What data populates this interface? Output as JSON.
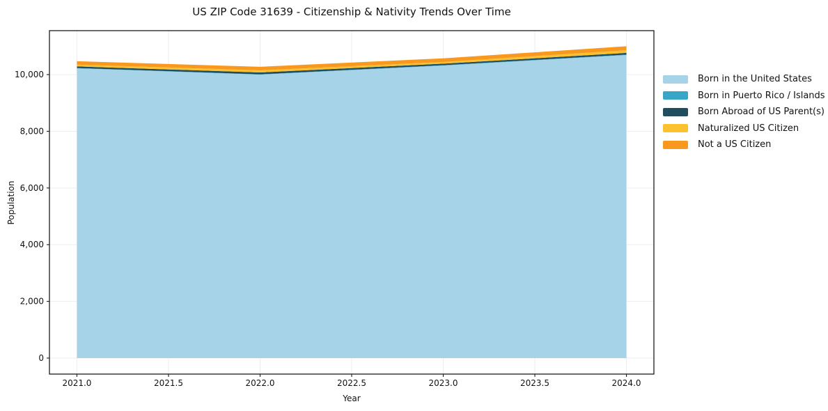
{
  "chart": {
    "title": "US ZIP Code 31639 - Citizenship & Nativity Trends Over Time",
    "xlabel": "Year",
    "ylabel": "Population"
  },
  "chart_data": {
    "type": "area",
    "stacked": true,
    "x": [
      2021,
      2022,
      2023,
      2024
    ],
    "series": [
      {
        "name": "Born in the United States",
        "color": "#A6D3E8",
        "values": [
          10220,
          10000,
          10320,
          10690
        ]
      },
      {
        "name": "Born in Puerto Rico / Islands",
        "color": "#39A5C7",
        "values": [
          10,
          10,
          10,
          15
        ]
      },
      {
        "name": "Born Abroad of US Parent(s)",
        "color": "#204E5E",
        "values": [
          60,
          65,
          55,
          60
        ]
      },
      {
        "name": "Naturalized US Citizen",
        "color": "#FCC12F",
        "values": [
          60,
          75,
          60,
          95
        ]
      },
      {
        "name": "Not a US Citizen",
        "color": "#F8981F",
        "values": [
          120,
          125,
          130,
          140
        ]
      }
    ],
    "xticks": [
      "2021.0",
      "2021.5",
      "2022.0",
      "2022.5",
      "2023.0",
      "2023.5",
      "2024.0"
    ],
    "xtick_values": [
      2021,
      2021.5,
      2022,
      2022.5,
      2023,
      2023.5,
      2024
    ],
    "yticks": [
      "0",
      "2,000",
      "4,000",
      "6,000",
      "8,000",
      "10,000"
    ],
    "ytick_values": [
      0,
      2000,
      4000,
      6000,
      8000,
      10000
    ],
    "xlim": [
      2020.85,
      2024.15
    ],
    "ylim": [
      -565,
      11550
    ],
    "grid": true,
    "grid_color": "#ededed",
    "spine_color": "#1a1a1a",
    "legend_position": "right",
    "legend_frame": false
  }
}
